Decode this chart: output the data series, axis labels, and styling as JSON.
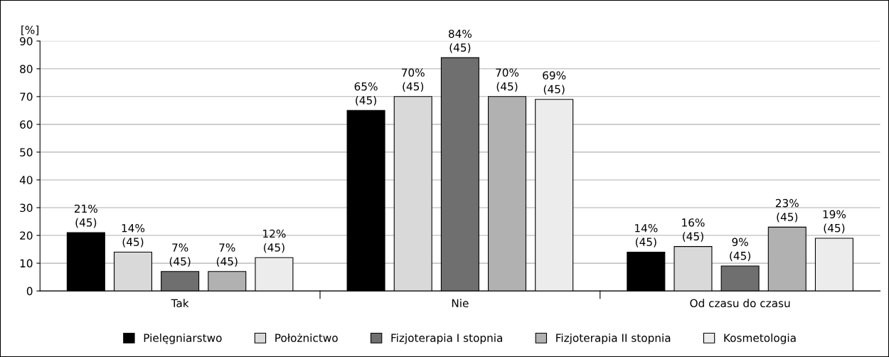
{
  "chart_data": {
    "type": "bar",
    "ylabel": "[%]",
    "categories": [
      "Tak",
      "Nie",
      "Od czasu do czasu"
    ],
    "series": [
      {
        "name": "Pielęgniarstwo",
        "color": "#000000",
        "values": [
          21,
          65,
          14
        ],
        "value_labels": [
          "21%\n(45)",
          "65%\n(45)",
          "14%\n(45)"
        ]
      },
      {
        "name": "Położnictwo",
        "color": "#d9d9d9",
        "values": [
          14,
          70,
          16
        ],
        "value_labels": [
          "14%\n(45)",
          "70%\n(45)",
          "16%\n(45)"
        ]
      },
      {
        "name": "Fizjoterapia I stopnia",
        "color": "#6f6f6f",
        "values": [
          7,
          84,
          9
        ],
        "value_labels": [
          "7%\n(45)",
          "84%\n(45)",
          "9%\n(45)"
        ]
      },
      {
        "name": "Fizjoterapia II stopnia",
        "color": "#b1b1b1",
        "values": [
          7,
          70,
          23
        ],
        "value_labels": [
          "7%\n(45)",
          "70%\n(45)",
          "23%\n(45)"
        ]
      },
      {
        "name": "Kosmetologia",
        "color": "#ececec",
        "values": [
          12,
          69,
          19
        ],
        "value_labels": [
          "12%\n(45)",
          "69%\n(45)",
          "19%\n(45)"
        ]
      }
    ],
    "ylim": [
      0,
      90
    ],
    "yticks": [
      0,
      10,
      20,
      30,
      40,
      50,
      60,
      70,
      80,
      90
    ],
    "grid": "y",
    "legend": "bottom"
  }
}
